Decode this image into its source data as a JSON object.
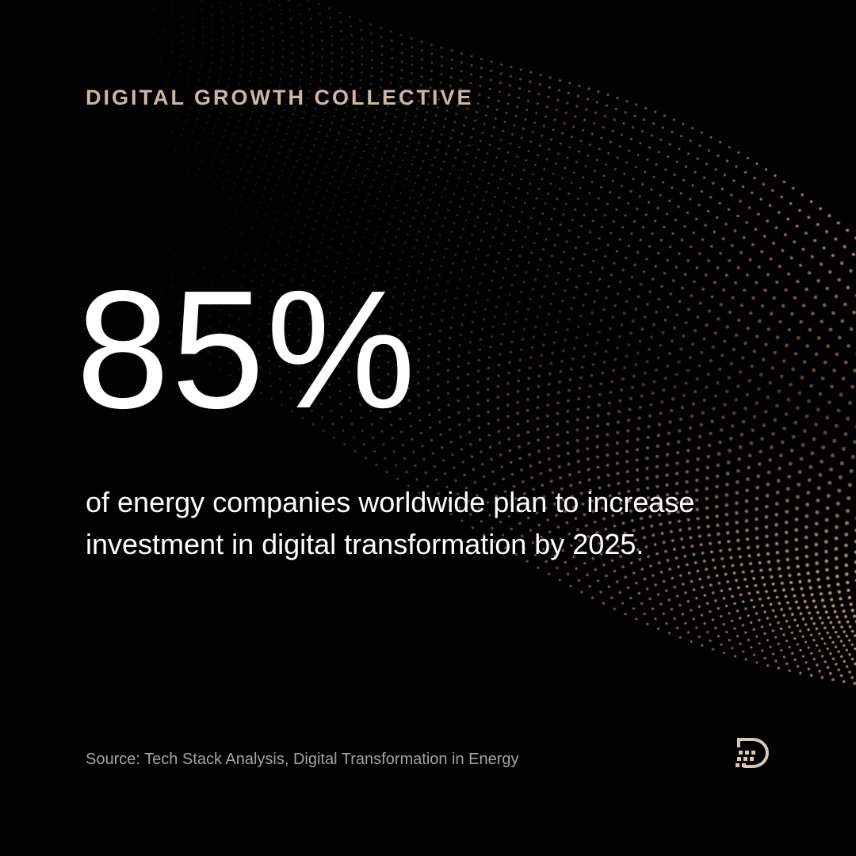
{
  "brand": "DIGITAL GROWTH COLLECTIVE",
  "stat": "85%",
  "description": {
    "line1": "of energy companies worldwide plan to increase",
    "line2": "investment in digital transformation by 2025."
  },
  "source": "Source: Tech Stack Analysis, Digital Transformation in Energy",
  "logo_icon": "dgc-logo-icon",
  "colors": {
    "background": "#020202",
    "brand": "#c9b8a6",
    "stat": "#ffffff",
    "description": "#ffffff",
    "source": "#a3a3a3",
    "dots": "#d4a680",
    "logo": "#d9c7b3"
  }
}
